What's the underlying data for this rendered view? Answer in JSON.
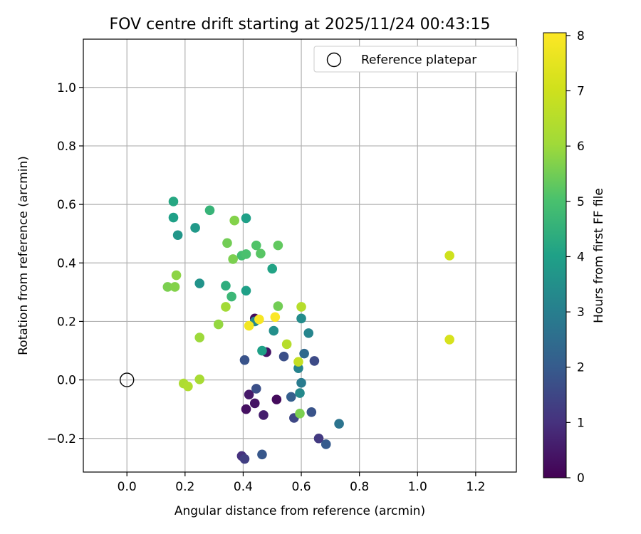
{
  "chart_data": {
    "type": "scatter",
    "title": "FOV centre drift starting at 2025/11/24 00:43:15",
    "xlabel": "Angular distance from reference (arcmin)",
    "ylabel": "Rotation from reference (arcmin)",
    "xlim": [
      -0.15,
      1.34
    ],
    "ylim": [
      -0.315,
      1.165
    ],
    "xticks": [
      0.0,
      0.2,
      0.4,
      0.6,
      0.8,
      1.0,
      1.2
    ],
    "xtick_labels": [
      "0.0",
      "0.2",
      "0.4",
      "0.6",
      "0.8",
      "1.0",
      "1.2"
    ],
    "yticks": [
      -0.2,
      0.0,
      0.2,
      0.4,
      0.6,
      0.8,
      1.0
    ],
    "ytick_labels": [
      "−0.2",
      "0.0",
      "0.2",
      "0.4",
      "0.6",
      "0.8",
      "1.0"
    ],
    "grid": true,
    "legend": {
      "position": "top-right",
      "entries": [
        "Reference platepar"
      ]
    },
    "reference_point": {
      "x": 0.0,
      "y": 0.0
    },
    "colorbar": {
      "label": "Hours from first FF file",
      "colormap": "viridis",
      "range": [
        0,
        8.05
      ],
      "ticks": [
        0,
        1,
        2,
        3,
        4,
        5,
        6,
        7,
        8
      ],
      "tick_labels": [
        "0",
        "1",
        "2",
        "3",
        "4",
        "5",
        "6",
        "7",
        "8"
      ]
    },
    "points": [
      {
        "x": 0.44,
        "y": 0.21,
        "h": 0.2
      },
      {
        "x": 0.48,
        "y": 0.095,
        "h": 0.4
      },
      {
        "x": 0.42,
        "y": -0.05,
        "h": 0.5
      },
      {
        "x": 0.41,
        "y": -0.1,
        "h": 0.3
      },
      {
        "x": 0.44,
        "y": -0.08,
        "h": 0.4
      },
      {
        "x": 0.47,
        "y": -0.12,
        "h": 0.6
      },
      {
        "x": 0.515,
        "y": -0.067,
        "h": 0.2
      },
      {
        "x": 0.395,
        "y": -0.26,
        "h": 1.0
      },
      {
        "x": 0.405,
        "y": -0.27,
        "h": 1.3
      },
      {
        "x": 0.66,
        "y": -0.2,
        "h": 1.2
      },
      {
        "x": 0.575,
        "y": -0.13,
        "h": 1.5
      },
      {
        "x": 0.445,
        "y": -0.03,
        "h": 1.7
      },
      {
        "x": 0.465,
        "y": -0.255,
        "h": 1.9
      },
      {
        "x": 0.635,
        "y": -0.11,
        "h": 1.8
      },
      {
        "x": 0.685,
        "y": -0.22,
        "h": 2.0
      },
      {
        "x": 0.645,
        "y": 0.065,
        "h": 1.6
      },
      {
        "x": 0.54,
        "y": 0.08,
        "h": 1.7
      },
      {
        "x": 0.405,
        "y": 0.068,
        "h": 1.8
      },
      {
        "x": 0.565,
        "y": -0.058,
        "h": 2.1
      },
      {
        "x": 0.61,
        "y": 0.09,
        "h": 2.4
      },
      {
        "x": 0.73,
        "y": -0.15,
        "h": 2.7
      },
      {
        "x": 0.6,
        "y": -0.01,
        "h": 2.9
      },
      {
        "x": 0.59,
        "y": 0.04,
        "h": 3.1
      },
      {
        "x": 0.595,
        "y": -0.045,
        "h": 3.3
      },
      {
        "x": 0.625,
        "y": 0.16,
        "h": 3.2
      },
      {
        "x": 0.6,
        "y": 0.21,
        "h": 3.4
      },
      {
        "x": 0.505,
        "y": 0.168,
        "h": 3.5
      },
      {
        "x": 0.44,
        "y": 0.2,
        "h": 3.3
      },
      {
        "x": 0.465,
        "y": 0.1,
        "h": 4.0
      },
      {
        "x": 0.25,
        "y": 0.33,
        "h": 3.6
      },
      {
        "x": 0.235,
        "y": 0.52,
        "h": 3.8
      },
      {
        "x": 0.175,
        "y": 0.495,
        "h": 3.7
      },
      {
        "x": 0.16,
        "y": 0.555,
        "h": 4.0
      },
      {
        "x": 0.16,
        "y": 0.61,
        "h": 4.2
      },
      {
        "x": 0.41,
        "y": 0.305,
        "h": 4.0
      },
      {
        "x": 0.5,
        "y": 0.38,
        "h": 4.1
      },
      {
        "x": 0.41,
        "y": 0.553,
        "h": 4.0
      },
      {
        "x": 0.285,
        "y": 0.58,
        "h": 4.6
      },
      {
        "x": 0.34,
        "y": 0.322,
        "h": 4.4
      },
      {
        "x": 0.36,
        "y": 0.285,
        "h": 4.7
      },
      {
        "x": 0.395,
        "y": 0.425,
        "h": 4.9
      },
      {
        "x": 0.41,
        "y": 0.43,
        "h": 5.0
      },
      {
        "x": 0.445,
        "y": 0.46,
        "h": 5.1
      },
      {
        "x": 0.46,
        "y": 0.432,
        "h": 5.2
      },
      {
        "x": 0.52,
        "y": 0.46,
        "h": 5.3
      },
      {
        "x": 0.52,
        "y": 0.252,
        "h": 5.5
      },
      {
        "x": 0.595,
        "y": -0.115,
        "h": 5.6
      },
      {
        "x": 0.345,
        "y": 0.468,
        "h": 5.5
      },
      {
        "x": 0.365,
        "y": 0.413,
        "h": 5.6
      },
      {
        "x": 0.37,
        "y": 0.545,
        "h": 5.7
      },
      {
        "x": 0.14,
        "y": 0.318,
        "h": 5.6
      },
      {
        "x": 0.165,
        "y": 0.318,
        "h": 5.7
      },
      {
        "x": 0.17,
        "y": 0.358,
        "h": 5.8
      },
      {
        "x": 0.315,
        "y": 0.19,
        "h": 5.9
      },
      {
        "x": 0.25,
        "y": 0.145,
        "h": 6.0
      },
      {
        "x": 0.34,
        "y": 0.25,
        "h": 6.1
      },
      {
        "x": 0.25,
        "y": 0.002,
        "h": 6.2
      },
      {
        "x": 0.195,
        "y": -0.012,
        "h": 6.3
      },
      {
        "x": 0.21,
        "y": -0.022,
        "h": 6.4
      },
      {
        "x": 0.6,
        "y": 0.25,
        "h": 6.5
      },
      {
        "x": 0.55,
        "y": 0.122,
        "h": 6.5
      },
      {
        "x": 0.59,
        "y": 0.062,
        "h": 6.8
      },
      {
        "x": 1.11,
        "y": 0.425,
        "h": 7.0
      },
      {
        "x": 1.11,
        "y": 0.138,
        "h": 7.2
      },
      {
        "x": 0.42,
        "y": 0.185,
        "h": 7.8
      },
      {
        "x": 0.455,
        "y": 0.207,
        "h": 7.9
      },
      {
        "x": 0.51,
        "y": 0.215,
        "h": 8.0
      }
    ]
  }
}
